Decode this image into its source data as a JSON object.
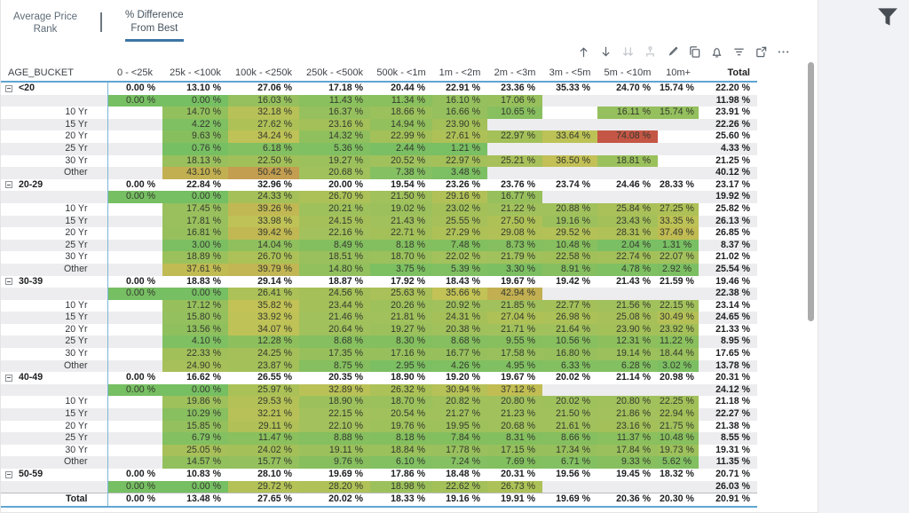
{
  "tabs": [
    {
      "line1": "Average Price",
      "line2": "Rank",
      "active": false
    },
    {
      "line1": "% Difference",
      "line2": "From Best",
      "active": true
    }
  ],
  "toolbar": {
    "icons": [
      {
        "name": "arrow-up-icon",
        "disabled": false
      },
      {
        "name": "arrow-down-icon",
        "disabled": false
      },
      {
        "name": "double-arrow-down-icon",
        "disabled": true
      },
      {
        "name": "hierarchy-icon",
        "disabled": true
      },
      {
        "name": "highlighter-icon",
        "disabled": false
      },
      {
        "name": "duplicate-icon",
        "disabled": false
      },
      {
        "name": "bell-icon",
        "disabled": false
      },
      {
        "name": "filter-lines-icon",
        "disabled": false
      },
      {
        "name": "maximize-icon",
        "disabled": false
      },
      {
        "name": "more-icon",
        "disabled": false
      }
    ]
  },
  "filter_button": {
    "name": "funnel-icon",
    "color": "#474d53"
  },
  "colors": {
    "accent_blue": "#3d75a6",
    "grid_blue": "#61a5d2",
    "heat_green": "#6fc05f",
    "heat_red": "#c05a48",
    "stripe": "#ededef",
    "heat_max_value": 74.08
  },
  "table": {
    "label_header": "AGE_BUCKET",
    "columns": [
      "0 - <25k",
      "25k - <100k",
      "100k - <250k",
      "250k - <500k",
      "500k - <1m",
      "1m - <2m",
      "2m - <3m",
      "3m - <5m",
      "5m - <10m",
      "10m+",
      "Total"
    ],
    "rows": [
      {
        "t": "group",
        "label": "<20",
        "v": [
          "0.00 %",
          "13.10 %",
          "27.06 %",
          "17.18 %",
          "20.44 %",
          "22.91 %",
          "23.36 %",
          "35.33 %",
          "24.70 %",
          "15.74 %",
          "22.20 %"
        ]
      },
      {
        "t": "sub",
        "label": "",
        "v": [
          "0.00 %",
          "0.00 %",
          "16.03 %",
          "11.43 %",
          "11.34 %",
          "16.10 %",
          "17.06 %",
          "",
          "",
          "",
          "11.98 %"
        ]
      },
      {
        "t": "detail",
        "label": "10 Yr",
        "v": [
          "",
          "14.70 %",
          "32.18 %",
          "16.37 %",
          "18.66 %",
          "16.66 %",
          "10.65 %",
          "",
          "16.11 %",
          "15.74 %",
          "23.91 %"
        ]
      },
      {
        "t": "detail",
        "label": "15 Yr",
        "v": [
          "",
          "4.22 %",
          "27.62 %",
          "23.16 %",
          "14.94 %",
          "23.90 %",
          "",
          "",
          "",
          "",
          "22.26 %"
        ]
      },
      {
        "t": "detail",
        "label": "20 Yr",
        "v": [
          "",
          "9.63 %",
          "34.24 %",
          "14.32 %",
          "22.99 %",
          "27.61 %",
          "22.97 %",
          "33.64 %",
          "74.08 %",
          "",
          "25.60 %"
        ]
      },
      {
        "t": "detail",
        "label": "25 Yr",
        "v": [
          "",
          "0.76 %",
          "6.18 %",
          "5.36 %",
          "2.44 %",
          "1.21 %",
          "",
          "",
          "",
          "",
          "4.33 %"
        ]
      },
      {
        "t": "detail",
        "label": "30 Yr",
        "v": [
          "",
          "18.13 %",
          "22.50 %",
          "19.27 %",
          "20.52 %",
          "22.97 %",
          "25.21 %",
          "36.50 %",
          "18.81 %",
          "",
          "21.25 %"
        ]
      },
      {
        "t": "detail",
        "label": "Other",
        "v": [
          "",
          "43.10 %",
          "50.42 %",
          "20.68 %",
          "7.38 %",
          "3.48 %",
          "",
          "",
          "",
          "",
          "40.12 %"
        ]
      },
      {
        "t": "group",
        "label": "20-29",
        "v": [
          "0.00 %",
          "22.84 %",
          "32.96 %",
          "20.00 %",
          "19.54 %",
          "23.26 %",
          "23.76 %",
          "23.74 %",
          "24.46 %",
          "28.33 %",
          "23.17 %"
        ]
      },
      {
        "t": "sub",
        "label": "",
        "v": [
          "0.00 %",
          "0.00 %",
          "24.33 %",
          "26.70 %",
          "21.50 %",
          "29.16 %",
          "16.77 %",
          "",
          "",
          "",
          "19.92 %"
        ]
      },
      {
        "t": "detail",
        "label": "10 Yr",
        "v": [
          "",
          "17.45 %",
          "39.26 %",
          "20.21 %",
          "19.02 %",
          "23.02 %",
          "21.22 %",
          "20.88 %",
          "25.84 %",
          "27.25 %",
          "25.82 %"
        ]
      },
      {
        "t": "detail",
        "label": "15 Yr",
        "v": [
          "",
          "17.81 %",
          "33.98 %",
          "24.15 %",
          "21.43 %",
          "25.55 %",
          "27.50 %",
          "19.16 %",
          "23.43 %",
          "33.35 %",
          "26.13 %"
        ]
      },
      {
        "t": "detail",
        "label": "20 Yr",
        "v": [
          "",
          "16.81 %",
          "39.42 %",
          "22.16 %",
          "22.71 %",
          "27.29 %",
          "29.08 %",
          "29.52 %",
          "28.31 %",
          "37.49 %",
          "26.85 %"
        ]
      },
      {
        "t": "detail",
        "label": "25 Yr",
        "v": [
          "",
          "3.00 %",
          "14.04 %",
          "8.49 %",
          "8.18 %",
          "7.48 %",
          "8.73 %",
          "10.48 %",
          "2.04 %",
          "1.31 %",
          "8.37 %"
        ]
      },
      {
        "t": "detail",
        "label": "30 Yr",
        "v": [
          "",
          "18.89 %",
          "26.70 %",
          "18.51 %",
          "18.70 %",
          "22.02 %",
          "21.79 %",
          "22.58 %",
          "22.74 %",
          "22.07 %",
          "21.02 %"
        ]
      },
      {
        "t": "detail",
        "label": "Other",
        "v": [
          "",
          "37.61 %",
          "39.79 %",
          "14.80 %",
          "3.75 %",
          "5.39 %",
          "3.30 %",
          "8.91 %",
          "4.78 %",
          "2.92 %",
          "25.54 %"
        ]
      },
      {
        "t": "group",
        "label": "30-39",
        "v": [
          "0.00 %",
          "18.83 %",
          "29.14 %",
          "18.87 %",
          "17.92 %",
          "18.43 %",
          "19.67 %",
          "19.42 %",
          "21.43 %",
          "21.59 %",
          "19.46 %"
        ]
      },
      {
        "t": "sub",
        "label": "",
        "v": [
          "0.00 %",
          "0.00 %",
          "26.41 %",
          "24.56 %",
          "25.63 %",
          "35.66 %",
          "42.94 %",
          "",
          "",
          "",
          "22.38 %"
        ]
      },
      {
        "t": "detail",
        "label": "10 Yr",
        "v": [
          "",
          "17.12 %",
          "35.82 %",
          "23.44 %",
          "20.26 %",
          "20.92 %",
          "21.85 %",
          "22.77 %",
          "21.56 %",
          "22.15 %",
          "23.14 %"
        ]
      },
      {
        "t": "detail",
        "label": "15 Yr",
        "v": [
          "",
          "15.80 %",
          "33.92 %",
          "21.46 %",
          "21.81 %",
          "24.31 %",
          "27.04 %",
          "26.98 %",
          "25.08 %",
          "30.49 %",
          "24.65 %"
        ]
      },
      {
        "t": "detail",
        "label": "20 Yr",
        "v": [
          "",
          "13.56 %",
          "34.07 %",
          "20.64 %",
          "19.27 %",
          "20.38 %",
          "21.71 %",
          "21.64 %",
          "23.90 %",
          "23.92 %",
          "21.33 %"
        ]
      },
      {
        "t": "detail",
        "label": "25 Yr",
        "v": [
          "",
          "4.10 %",
          "12.28 %",
          "8.68 %",
          "8.30 %",
          "8.68 %",
          "9.55 %",
          "10.56 %",
          "12.31 %",
          "11.22 %",
          "8.95 %"
        ]
      },
      {
        "t": "detail",
        "label": "30 Yr",
        "v": [
          "",
          "22.33 %",
          "24.25 %",
          "17.35 %",
          "17.16 %",
          "16.77 %",
          "17.58 %",
          "16.80 %",
          "19.14 %",
          "18.44 %",
          "17.65 %"
        ]
      },
      {
        "t": "detail",
        "label": "Other",
        "v": [
          "",
          "24.90 %",
          "23.87 %",
          "8.75 %",
          "2.95 %",
          "4.26 %",
          "4.95 %",
          "6.33 %",
          "6.28 %",
          "3.02 %",
          "13.78 %"
        ]
      },
      {
        "t": "group",
        "label": "40-49",
        "v": [
          "0.00 %",
          "16.62 %",
          "26.55 %",
          "20.35 %",
          "18.90 %",
          "19.20 %",
          "19.67 %",
          "20.02 %",
          "21.14 %",
          "20.98 %",
          "20.31 %"
        ]
      },
      {
        "t": "sub",
        "label": "",
        "v": [
          "0.00 %",
          "0.00 %",
          "25.97 %",
          "32.89 %",
          "26.32 %",
          "30.94 %",
          "37.12 %",
          "",
          "",
          "",
          "24.12 %"
        ]
      },
      {
        "t": "detail",
        "label": "10 Yr",
        "v": [
          "",
          "19.86 %",
          "29.53 %",
          "18.90 %",
          "18.70 %",
          "20.82 %",
          "20.80 %",
          "20.02 %",
          "20.80 %",
          "22.25 %",
          "21.18 %"
        ]
      },
      {
        "t": "detail",
        "label": "15 Yr",
        "v": [
          "",
          "10.29 %",
          "32.21 %",
          "22.15 %",
          "20.54 %",
          "21.27 %",
          "21.23 %",
          "21.50 %",
          "21.86 %",
          "22.94 %",
          "22.27 %"
        ]
      },
      {
        "t": "detail",
        "label": "20 Yr",
        "v": [
          "",
          "15.85 %",
          "29.11 %",
          "22.10 %",
          "19.76 %",
          "19.95 %",
          "20.68 %",
          "21.61 %",
          "23.16 %",
          "21.75 %",
          "21.38 %"
        ]
      },
      {
        "t": "detail",
        "label": "25 Yr",
        "v": [
          "",
          "6.79 %",
          "11.47 %",
          "8.88 %",
          "8.18 %",
          "7.84 %",
          "8.31 %",
          "8.66 %",
          "11.37 %",
          "10.48 %",
          "8.55 %"
        ]
      },
      {
        "t": "detail",
        "label": "30 Yr",
        "v": [
          "",
          "25.05 %",
          "24.02 %",
          "19.11 %",
          "18.84 %",
          "17.78 %",
          "17.15 %",
          "17.34 %",
          "17.84 %",
          "19.73 %",
          "19.31 %"
        ]
      },
      {
        "t": "detail",
        "label": "Other",
        "v": [
          "",
          "14.57 %",
          "15.77 %",
          "9.76 %",
          "6.10 %",
          "7.24 %",
          "7.69 %",
          "6.71 %",
          "9.33 %",
          "5.62 %",
          "11.35 %"
        ]
      },
      {
        "t": "group",
        "label": "50-59",
        "v": [
          "0.00 %",
          "10.83 %",
          "28.10 %",
          "19.69 %",
          "17.86 %",
          "18.48 %",
          "20.31 %",
          "19.56 %",
          "19.45 %",
          "18.32 %",
          "20.71 %"
        ]
      },
      {
        "t": "sub",
        "label": "",
        "v": [
          "0.00 %",
          "0.00 %",
          "29.72 %",
          "28.20 %",
          "18.98 %",
          "22.62 %",
          "26.73 %",
          "",
          "",
          "",
          "26.03 %"
        ]
      },
      {
        "t": "total",
        "label": "Total",
        "v": [
          "0.00 %",
          "13.48 %",
          "27.65 %",
          "20.02 %",
          "18.33 %",
          "19.16 %",
          "19.91 %",
          "19.69 %",
          "20.36 %",
          "20.30 %",
          "20.91 %"
        ]
      }
    ]
  }
}
